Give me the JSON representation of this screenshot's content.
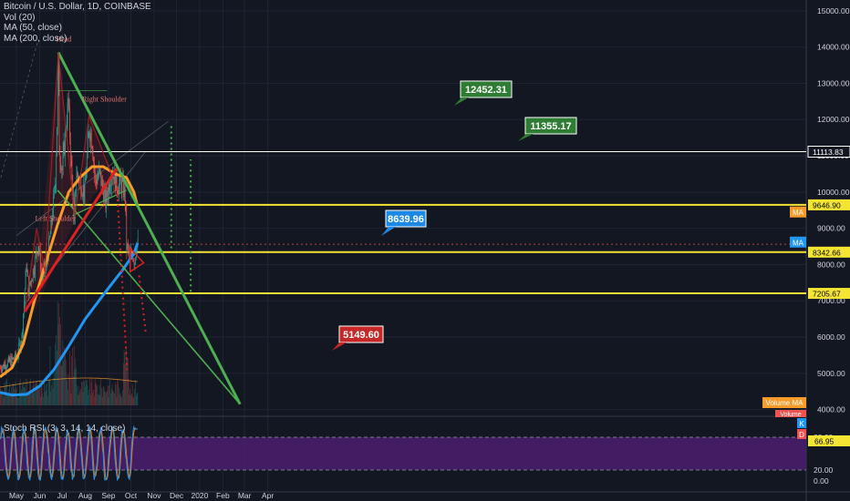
{
  "header": {
    "symbol": "Bitcoin / U.S. Dollar, 1D, COINBASE",
    "vol": "Vol (20)",
    "ma50": "MA (50, close)",
    "ma200": "MA (200, close)"
  },
  "rsi": {
    "legend": "Stoch RSI (3, 3, 14, 14, close)",
    "ticks": [
      "80.00",
      "20.00",
      "0.00"
    ],
    "k_label": "K",
    "d_label": "D",
    "value": "66.95"
  },
  "colors": {
    "bg": "#131722",
    "grid": "#1f2433",
    "text": "#d1d4dc",
    "up": "#26a69a",
    "down": "#ef5350",
    "ma50": "#f89b29",
    "ma200": "#2196f3",
    "trend": "#4caf50",
    "yellow": "#f5e533",
    "red": "#e02020",
    "rsi_fill": "#4b1f6e"
  },
  "chart_data": {
    "type": "candlestick",
    "title": "Bitcoin / U.S. Dollar, 1D, COINBASE",
    "x_labels": [
      "May",
      "Jun",
      "Jul",
      "Aug",
      "Sep",
      "Oct",
      "Nov",
      "Dec",
      "2020",
      "Feb",
      "Mar",
      "Apr"
    ],
    "price_ticks": [
      "15000.00",
      "14000.00",
      "13000.00",
      "12000.00",
      "11000.00",
      "10000.00",
      "9000.00",
      "8000.00",
      "7000.00",
      "6000.00",
      "5000.00",
      "4000.00"
    ],
    "price_range": [
      3200,
      15350
    ],
    "grid": true,
    "candles_approx": [
      {
        "date": "2019-05-01",
        "price": 5400
      },
      {
        "date": "2019-05-15",
        "price": 8000
      },
      {
        "date": "2019-06-01",
        "price": 8500
      },
      {
        "date": "2019-06-26",
        "price": 13800
      },
      {
        "date": "2019-07-17",
        "price": 9500
      },
      {
        "date": "2019-08-06",
        "price": 11800
      },
      {
        "date": "2019-09-01",
        "price": 10300
      },
      {
        "date": "2019-09-24",
        "price": 8400
      },
      {
        "date": "2019-10-08",
        "price": 8640
      }
    ],
    "levels": [
      {
        "value": "11113.83",
        "color": "#ffffff"
      },
      {
        "value": "9646.90",
        "color": "#f5e533"
      },
      {
        "value": "8342.66",
        "color": "#f5e533"
      },
      {
        "value": "7205.67",
        "color": "#f5e533"
      }
    ],
    "axis_badges": [
      {
        "text": "MA",
        "color": "#f89b29",
        "price": 9450
      },
      {
        "text": "MA",
        "color": "#2196f3",
        "price": 8620
      },
      {
        "text": "Volume MA",
        "color": "#f89b29"
      },
      {
        "text": "Volume",
        "color": "#ef5350"
      }
    ],
    "annotations": [
      {
        "text": "Head",
        "price": 14000
      },
      {
        "text": "Right Shoulder",
        "price": 12600
      },
      {
        "text": "Left Shoulder",
        "price": 9300
      }
    ],
    "callouts": [
      {
        "text": "12452.31",
        "color": "#2e7d32"
      },
      {
        "text": "11355.17",
        "color": "#2e7d32"
      },
      {
        "text": "8639.96",
        "color": "#1e88e5"
      },
      {
        "text": "5149.60",
        "color": "#c62828"
      }
    ],
    "indicators": [
      "Vol (20)",
      "MA (50, close)",
      "MA (200, close)",
      "Stoch RSI (3, 3, 14, 14, close)"
    ]
  }
}
